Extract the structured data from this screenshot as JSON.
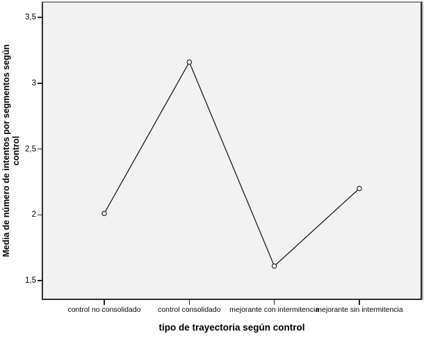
{
  "figure": {
    "background": "#ffffff",
    "plot_background": "#f2f2f2",
    "frame_color": "#2d2d2d",
    "line_color": "#1a1a1a",
    "marker_style": "open-circle"
  },
  "chart_data": {
    "type": "line",
    "title": "",
    "xlabel": "tipo de trayectoria según control",
    "ylabel": "Media de número de intentos por segmentos según control",
    "ylabel_lines": [
      "Media de número de intentos por segmentos según",
      "control"
    ],
    "categories": [
      "control no consolidado",
      "control consolidado",
      "mejorante con intermitencia",
      "mejorante sin intermitencia"
    ],
    "values": [
      2.01,
      3.16,
      1.61,
      2.2
    ],
    "ytick_labels": [
      "3,5",
      "3",
      "2,5",
      "2",
      "1,5"
    ],
    "ytick_values": [
      3.5,
      3.0,
      2.5,
      2.0,
      1.5
    ],
    "ylim": [
      1.39,
      3.61
    ],
    "decimal_separator": ",",
    "grid": false,
    "legend": null
  }
}
